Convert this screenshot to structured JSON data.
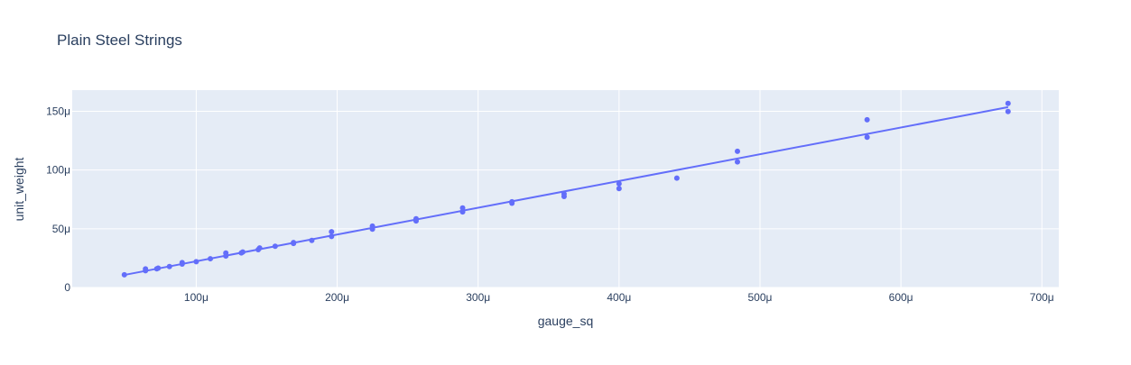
{
  "chart_data": {
    "type": "scatter",
    "title": "Plain Steel Strings",
    "xlabel": "gauge_sq",
    "ylabel": "unit_weight",
    "xlim": [
      1.2e-05,
      0.000712
    ],
    "ylim": [
      0,
      0.000168
    ],
    "x_ticks": [
      {
        "value": 0.0001,
        "label": "100μ"
      },
      {
        "value": 0.0002,
        "label": "200μ"
      },
      {
        "value": 0.0003,
        "label": "300μ"
      },
      {
        "value": 0.0004,
        "label": "400μ"
      },
      {
        "value": 0.0005,
        "label": "500μ"
      },
      {
        "value": 0.0006,
        "label": "600μ"
      },
      {
        "value": 0.0007,
        "label": "700μ"
      }
    ],
    "y_ticks": [
      {
        "value": 0,
        "label": "0"
      },
      {
        "value": 5e-05,
        "label": "50μ"
      },
      {
        "value": 0.0001,
        "label": "100μ"
      },
      {
        "value": 0.00015,
        "label": "150μ"
      }
    ],
    "grid": true,
    "colors": {
      "marker": "#636efa",
      "trendline": "#636efa",
      "plot_bg": "#e5ecf6",
      "grid": "#ffffff"
    },
    "series": [
      {
        "mode": "markers",
        "x": [
          4.9e-05,
          6.4e-05,
          6.4e-05,
          7.2e-05,
          7.3e-05,
          8.1e-05,
          9e-05,
          9e-05,
          0.0001,
          0.00011,
          0.000121,
          0.000121,
          0.000132,
          0.000133,
          0.000144,
          0.000145,
          0.000156,
          0.000169,
          0.000169,
          0.000182,
          0.000196,
          0.000196,
          0.000225,
          0.000225,
          0.000256,
          0.000256,
          0.000289,
          0.000289,
          0.000324,
          0.000324,
          0.000361,
          0.000361,
          0.0004,
          0.0004,
          0.000441,
          0.000484,
          0.000484,
          0.000576,
          0.000576,
          0.000676,
          0.000676
        ],
        "y": [
          1.08e-05,
          1.43e-05,
          1.58e-05,
          1.59e-05,
          1.65e-05,
          1.78e-05,
          1.99e-05,
          2.12e-05,
          2.2e-05,
          2.45e-05,
          2.68e-05,
          2.93e-05,
          2.94e-05,
          3.02e-05,
          3.22e-05,
          3.37e-05,
          3.51e-05,
          3.75e-05,
          3.83e-05,
          4.01e-05,
          4.34e-05,
          4.75e-05,
          4.97e-05,
          5.23e-05,
          5.67e-05,
          5.85e-05,
          6.43e-05,
          6.77e-05,
          7.17e-05,
          7.3e-05,
          7.75e-05,
          7.97e-05,
          8.42e-05,
          8.83e-05,
          9.31e-05,
          0.0001069,
          0.0001159,
          0.0001279,
          0.0001428,
          0.0001498,
          0.0001567
        ]
      },
      {
        "mode": "lines",
        "x": [
          4.9e-05,
          0.000676
        ],
        "y": [
          1.07e-05,
          0.0001535
        ]
      }
    ]
  }
}
